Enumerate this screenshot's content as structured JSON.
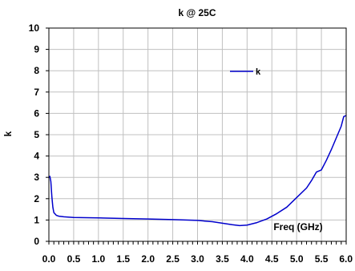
{
  "chart_data": {
    "type": "line",
    "title": "k @ 25C",
    "xlabel": "Freq (GHz)",
    "ylabel": "k",
    "xlim": [
      0,
      6
    ],
    "ylim": [
      0,
      10
    ],
    "x_ticks": [
      "0.0",
      "0.5",
      "1.0",
      "1.5",
      "2.0",
      "2.5",
      "3.0",
      "3.5",
      "4.0",
      "4.5",
      "5.0",
      "5.5",
      "6.0"
    ],
    "y_ticks": [
      "0",
      "1",
      "2",
      "3",
      "4",
      "5",
      "6",
      "7",
      "8",
      "9",
      "10"
    ],
    "grid": true,
    "legend_position": "top-right",
    "series": [
      {
        "name": "k",
        "color": "#0000cc",
        "x": [
          0.0,
          0.02,
          0.04,
          0.06,
          0.08,
          0.1,
          0.15,
          0.2,
          0.3,
          0.5,
          1.0,
          1.5,
          2.0,
          2.5,
          3.0,
          3.3,
          3.5,
          3.7,
          3.85,
          4.0,
          4.2,
          4.4,
          4.6,
          4.8,
          5.0,
          5.2,
          5.3,
          5.4,
          5.5,
          5.6,
          5.7,
          5.8,
          5.9,
          5.95,
          6.0
        ],
        "y": [
          3.0,
          3.05,
          2.8,
          2.1,
          1.6,
          1.35,
          1.22,
          1.18,
          1.15,
          1.12,
          1.1,
          1.07,
          1.05,
          1.02,
          0.98,
          0.92,
          0.85,
          0.78,
          0.74,
          0.76,
          0.88,
          1.05,
          1.3,
          1.6,
          2.05,
          2.5,
          2.85,
          3.25,
          3.35,
          3.8,
          4.3,
          4.85,
          5.4,
          5.85,
          5.9
        ]
      }
    ]
  }
}
